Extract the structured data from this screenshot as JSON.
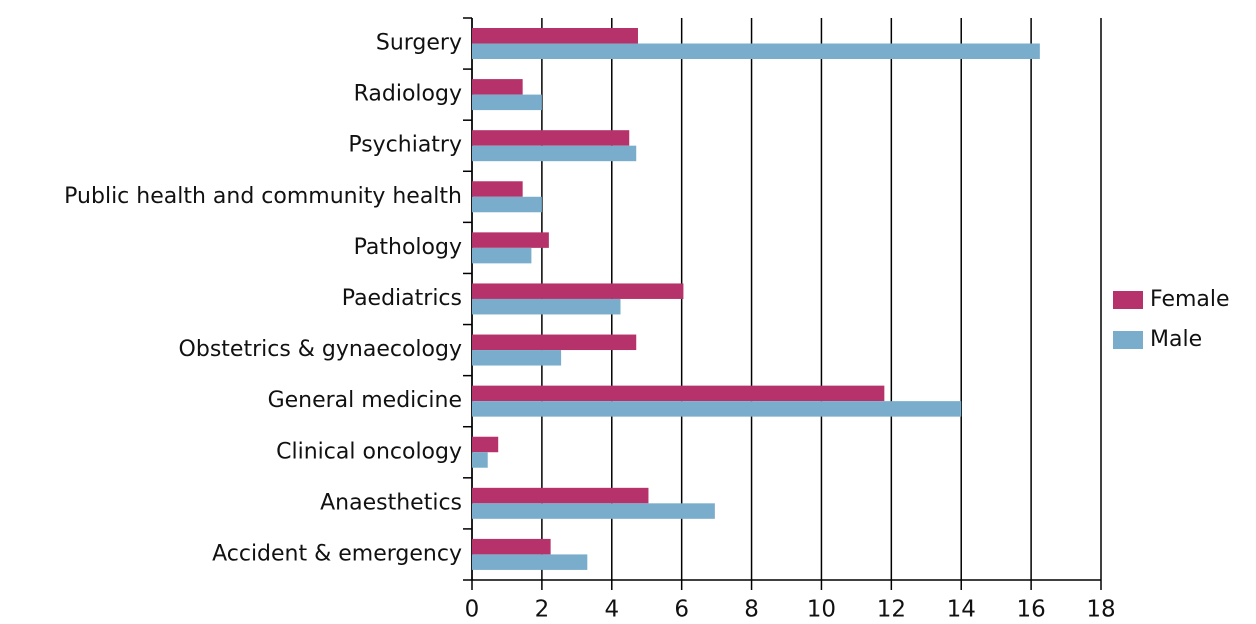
{
  "chart_data": {
    "type": "hbar",
    "categories": [
      "Surgery",
      "Radiology",
      "Psychiatry",
      "Public health and community health",
      "Pathology",
      "Paediatrics",
      "Obstetrics & gynaecology",
      "General medicine",
      "Clinical oncology",
      "Anaesthetics",
      "Accident & emergency"
    ],
    "series": [
      {
        "name": "Female",
        "color": "#b5336a",
        "values": [
          4.75,
          1.45,
          4.5,
          1.45,
          2.2,
          6.05,
          4.7,
          11.8,
          0.75,
          5.05,
          2.25
        ]
      },
      {
        "name": "Male",
        "color": "#7aadcc",
        "values": [
          16.25,
          2.0,
          4.7,
          2.0,
          1.7,
          4.25,
          2.55,
          14.0,
          0.45,
          6.95,
          3.3
        ]
      }
    ],
    "xlim": [
      0,
      18
    ],
    "xticks": [
      0,
      2,
      4,
      6,
      8,
      10,
      12,
      14,
      16,
      18
    ],
    "grid": true,
    "legend": "right"
  }
}
